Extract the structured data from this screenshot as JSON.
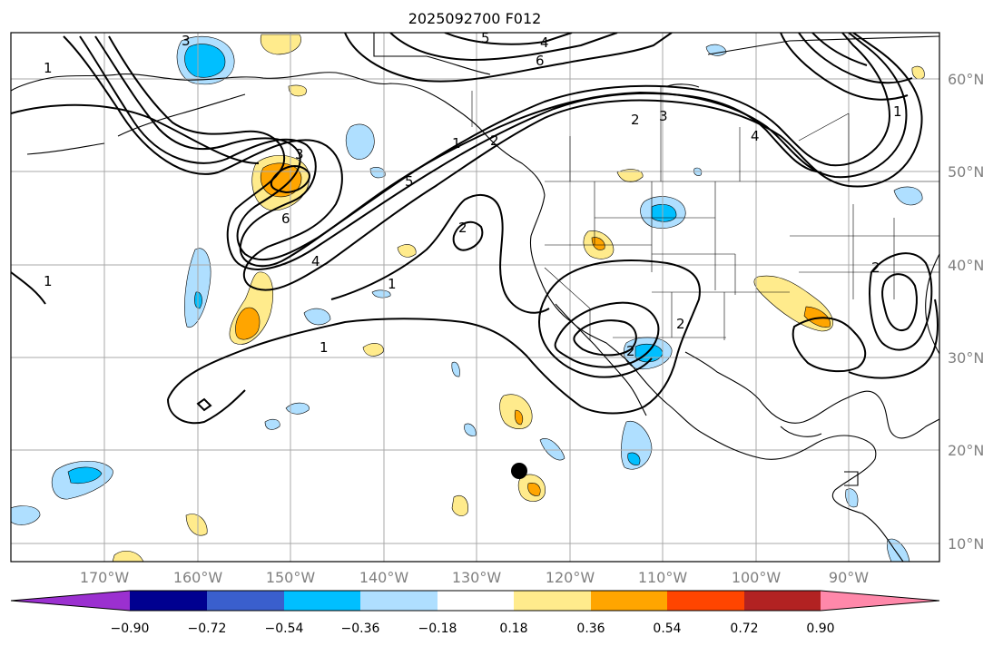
{
  "title": "2025092700 F012",
  "map": {
    "lon_labels": [
      "170°W",
      "160°W",
      "150°W",
      "140°W",
      "130°W",
      "120°W",
      "110°W",
      "100°W",
      "90°W"
    ],
    "lat_labels": [
      "60°N",
      "50°N",
      "40°N",
      "30°N",
      "20°N",
      "10°N"
    ],
    "contour_labels": [
      "1",
      "1",
      "1",
      "1",
      "1",
      "2",
      "2",
      "2",
      "2",
      "2",
      "2",
      "3",
      "3",
      "3",
      "4",
      "4",
      "4",
      "5",
      "5",
      "6",
      "6",
      "1"
    ],
    "marker": "storm-center-dot"
  },
  "colorbar": {
    "colors": [
      "#9b30d0",
      "#000090",
      "#3a5fcd",
      "#00bfff",
      "#afdfff",
      "#ffffff",
      "#ffeb8c",
      "#ffa500",
      "#ff4500",
      "#b22222",
      "#ff88aa"
    ],
    "tick_labels": [
      "−0.90",
      "−0.72",
      "−0.54",
      "−0.36",
      "−0.18",
      "0.18",
      "0.36",
      "0.54",
      "0.72",
      "0.90"
    ]
  },
  "fills": {
    "light_blue": "#afdfff",
    "blue": "#00bfff",
    "light_yellow": "#ffeb8c",
    "orange": "#ffa500"
  }
}
